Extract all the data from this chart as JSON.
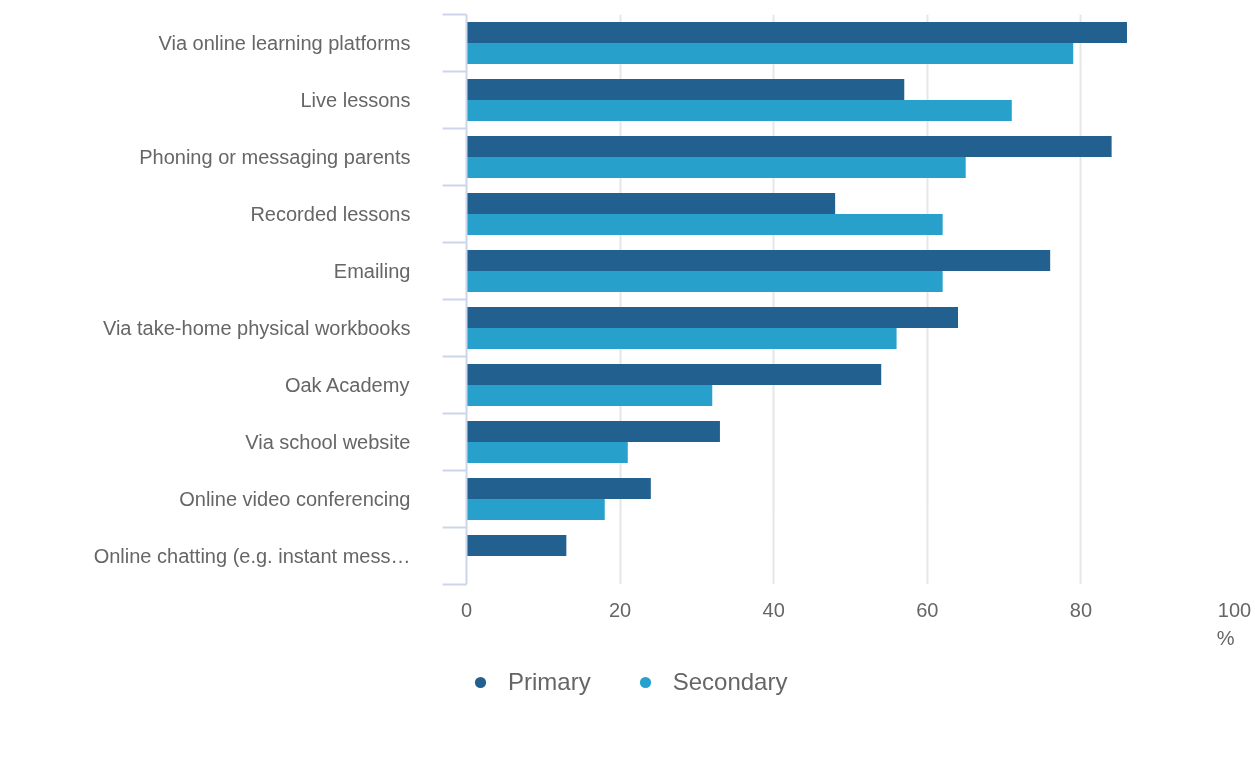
{
  "chart_data": {
    "type": "bar",
    "orientation": "horizontal",
    "categories": [
      "Via online learning platforms",
      "Live lessons",
      "Phoning or messaging parents",
      "Recorded lessons",
      "Emailing",
      "Via take-home physical workbooks",
      "Oak Academy",
      "Via school website",
      "Online video conferencing",
      "Online chatting (e.g. instant mess…"
    ],
    "series": [
      {
        "name": "Primary",
        "color": "#21608f",
        "values": [
          86,
          57,
          84,
          48,
          76,
          64,
          54,
          33,
          24,
          13
        ]
      },
      {
        "name": "Secondary",
        "color": "#27a1cc",
        "values": [
          79,
          71,
          65,
          62,
          62,
          56,
          32,
          21,
          18,
          null
        ]
      }
    ],
    "xlabel": "%",
    "xlim": [
      0,
      100
    ],
    "xticks": [
      0,
      20,
      40,
      60,
      80,
      100
    ],
    "grid": "x",
    "legend": "bottom left"
  }
}
